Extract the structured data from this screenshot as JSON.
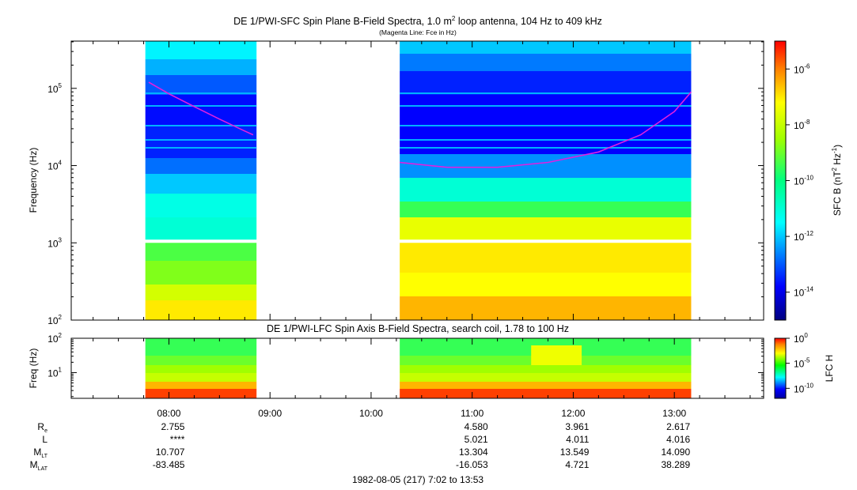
{
  "figure": {
    "footer_date": "1982-08-05 (217) 7:02 to 13:53"
  },
  "chart_data": [
    {
      "type": "heatmap",
      "title": "DE 1/PWI-SFC  Spin Plane B-Field Spectra, 1.0 m",
      "title_sup": "2",
      "title_tail": " loop antenna, 104 Hz to 409 kHz",
      "subtitle": "(Magenta Line: Fce in Hz)",
      "ylabel": "Frequency (Hz)",
      "yscale": "log",
      "ylim_hz": [
        100,
        409000
      ],
      "yticks": [
        {
          "base": "10",
          "exp": "2",
          "value": 100
        },
        {
          "base": "10",
          "exp": "3",
          "value": 1000
        },
        {
          "base": "10",
          "exp": "4",
          "value": 10000
        },
        {
          "base": "10",
          "exp": "5",
          "value": 100000
        }
      ],
      "data_intervals": [
        {
          "start": "07:46",
          "end": "08:52"
        },
        {
          "start": "10:17",
          "end": "13:10"
        }
      ],
      "gap_band_hz": [
        1000,
        1100
      ],
      "colorbar": {
        "label": "SFC B (nT",
        "label_exp1": "2",
        "label_mid": " Hz",
        "label_exp2": "-1",
        "label_close": ")",
        "scale": "log",
        "range": [
          1e-15,
          1e-05
        ],
        "ticks": [
          {
            "base": "10",
            "exp": "-6",
            "value": 1e-06
          },
          {
            "base": "10",
            "exp": "-8",
            "value": 1e-08
          },
          {
            "base": "10",
            "exp": "-10",
            "value": 1e-10
          },
          {
            "base": "10",
            "exp": "-12",
            "value": 1e-12
          },
          {
            "base": "10",
            "exp": "-14",
            "value": 1e-14
          }
        ]
      },
      "fce_line": {
        "color": "#e020e0",
        "segments": [
          {
            "t": [
              "07:48",
              "08:00",
              "08:15",
              "08:30",
              "08:45",
              "08:50"
            ],
            "hz": [
              120000,
              85000,
              58000,
              40000,
              28000,
              25000
            ]
          },
          {
            "t": [
              "10:17",
              "10:45",
              "11:15",
              "11:45",
              "12:15",
              "12:40",
              "13:00",
              "13:10"
            ],
            "hz": [
              11000,
              9500,
              9500,
              11000,
              15000,
              25000,
              50000,
              90000
            ]
          }
        ]
      }
    },
    {
      "type": "heatmap",
      "title": "DE 1/PWI-LFC  Spin Axis B-Field Spectra, search coil, 1.78 to 100 Hz",
      "ylabel": "Freq (Hz)",
      "yscale": "log",
      "ylim_hz": [
        1.78,
        100
      ],
      "yticks": [
        {
          "base": "10",
          "exp": "1",
          "value": 10
        },
        {
          "base": "10",
          "exp": "2",
          "value": 100
        }
      ],
      "data_intervals": [
        {
          "start": "07:46",
          "end": "08:52"
        },
        {
          "start": "10:17",
          "end": "13:10"
        }
      ],
      "colorbar": {
        "label": "LFC H",
        "scale": "log",
        "range": [
          1e-12,
          1
        ],
        "ticks": [
          {
            "base": "10",
            "exp": "0",
            "value": 1
          },
          {
            "base": "10",
            "exp": "-5",
            "value": 1e-05
          },
          {
            "base": "10",
            "exp": "-10",
            "value": 1e-10
          }
        ]
      }
    }
  ],
  "time_axis": {
    "range": [
      "07:02",
      "13:53"
    ],
    "major_ticks": [
      "08:00",
      "09:00",
      "10:00",
      "11:00",
      "12:00",
      "13:00"
    ],
    "minor_step_minutes": 15
  },
  "ephemeris": {
    "labels": [
      {
        "main": "R",
        "sub": "e"
      },
      {
        "main": "L",
        "sub": ""
      },
      {
        "main": "M",
        "sub": "LT"
      },
      {
        "main": "M",
        "sub": "LAT"
      }
    ],
    "columns": [
      {
        "time": "08:00",
        "values": [
          "2.755",
          "****",
          "10.707",
          "-83.485"
        ]
      },
      {
        "time": "11:00",
        "values": [
          "4.580",
          "5.021",
          "13.304",
          "-16.053"
        ]
      },
      {
        "time": "12:00",
        "values": [
          "3.961",
          "4.011",
          "13.549",
          "4.721"
        ]
      },
      {
        "time": "13:00",
        "values": [
          "2.617",
          "4.016",
          "14.090",
          "38.289"
        ]
      }
    ]
  }
}
